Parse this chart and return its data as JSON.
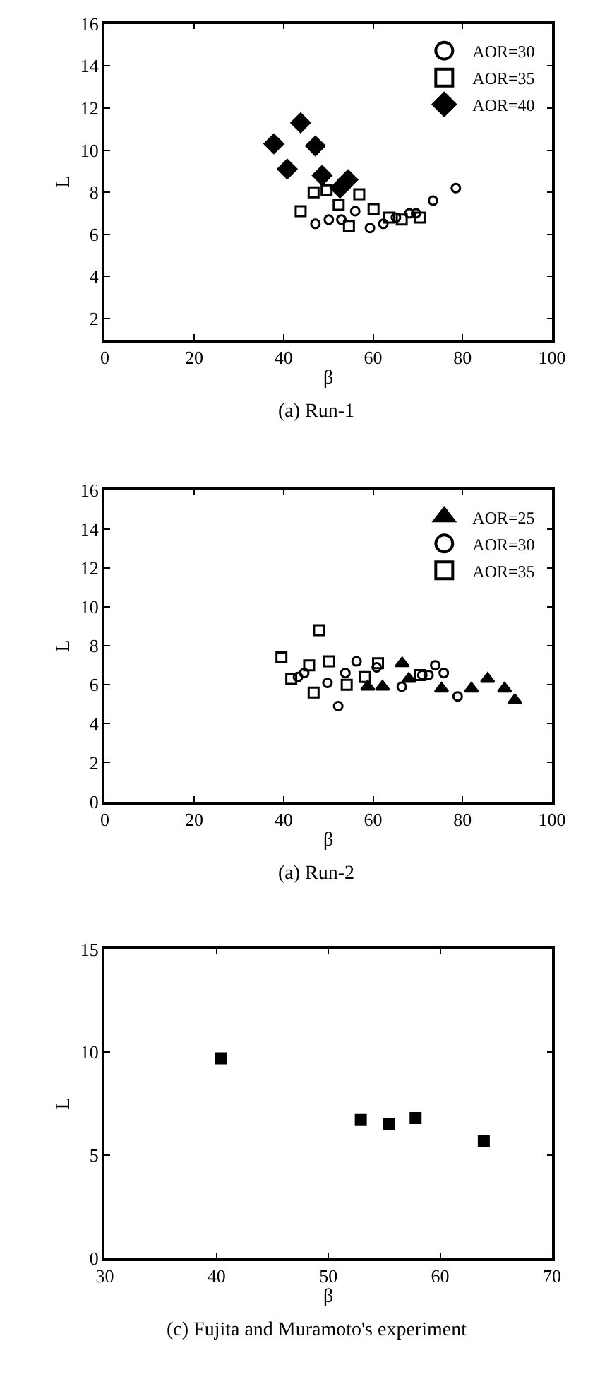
{
  "chart_data": [
    {
      "type": "scatter",
      "xlabel": "β",
      "ylabel": "L",
      "annotations": [
        "(a) Run-1"
      ],
      "xlim": [
        0,
        100
      ],
      "xticks": [
        0,
        20,
        40,
        60,
        80,
        100
      ],
      "ylim": [
        1,
        16
      ],
      "yticks": [
        2,
        4,
        6,
        8,
        10,
        12,
        14,
        16
      ],
      "grid": false,
      "legend": "top right",
      "series": [
        {
          "name": "AOR=30",
          "color": "#000000",
          "marker": "circle",
          "x": [
            47.1,
            50.1,
            52.9,
            56.0,
            59.3,
            62.3,
            65.1,
            68.1,
            69.6,
            73.4,
            78.5
          ],
          "values": [
            6.5,
            6.7,
            6.7,
            7.1,
            6.3,
            6.5,
            6.8,
            7.0,
            7.0,
            7.6,
            8.2
          ]
        },
        {
          "name": "AOR=35",
          "color": "#000000",
          "marker": "square",
          "x": [
            43.8,
            46.7,
            49.6,
            52.3,
            54.6,
            56.9,
            60.1,
            63.6,
            66.4,
            70.4
          ],
          "values": [
            7.1,
            8.0,
            8.1,
            7.4,
            6.4,
            7.9,
            7.2,
            6.8,
            6.7,
            6.8
          ]
        },
        {
          "name": "AOR=40",
          "color": "#000000",
          "marker": "diamond",
          "x": [
            37.8,
            43.8,
            47.1,
            40.8,
            48.6,
            52.6,
            54.4
          ],
          "values": [
            10.3,
            11.3,
            10.2,
            9.1,
            8.8,
            8.2,
            8.6
          ]
        }
      ]
    },
    {
      "type": "scatter",
      "xlabel": "β",
      "ylabel": "L",
      "annotations": [
        "(a) Run-2"
      ],
      "xlim": [
        0,
        100
      ],
      "xticks": [
        0,
        20,
        40,
        60,
        80,
        100
      ],
      "ylim": [
        0,
        16
      ],
      "yticks": [
        0,
        2,
        4,
        6,
        8,
        10,
        12,
        14,
        16
      ],
      "grid": false,
      "legend": "top right",
      "series": [
        {
          "name": "AOR=25",
          "color": "#000000",
          "marker": "triangle",
          "x": [
            58.8,
            62.1,
            66.5,
            68.0,
            75.3,
            82.0,
            85.6,
            89.4,
            91.7
          ],
          "values": [
            5.9,
            5.9,
            7.1,
            6.3,
            5.8,
            5.8,
            6.3,
            5.8,
            5.2
          ]
        },
        {
          "name": "AOR=30",
          "color": "#000000",
          "marker": "circle",
          "x": [
            43.2,
            44.6,
            49.8,
            52.2,
            53.8,
            56.3,
            60.8,
            66.4,
            71.0,
            72.4,
            73.9,
            75.8,
            78.9
          ],
          "values": [
            6.4,
            6.6,
            6.1,
            4.9,
            6.6,
            7.2,
            6.9,
            5.9,
            6.5,
            6.5,
            7.0,
            6.6,
            5.4
          ]
        },
        {
          "name": "AOR=35",
          "color": "#000000",
          "marker": "square",
          "x": [
            39.5,
            41.7,
            45.7,
            46.7,
            47.9,
            50.2,
            54.1,
            58.2,
            61.1,
            70.5
          ],
          "values": [
            7.4,
            6.3,
            7.0,
            5.6,
            8.8,
            7.2,
            6.0,
            6.4,
            7.1,
            6.5
          ]
        }
      ]
    },
    {
      "type": "scatter",
      "xlabel": "β",
      "ylabel": "L",
      "annotations": [
        "(c) Fujita and Muramoto's experiment"
      ],
      "xlim": [
        30,
        70
      ],
      "xticks": [
        30,
        40,
        50,
        60,
        70
      ],
      "ylim": [
        0,
        15
      ],
      "yticks": [
        0,
        5,
        10,
        15
      ],
      "grid": false,
      "legend": false,
      "series": [
        {
          "color": "#000000",
          "marker": "square",
          "x": [
            40.4,
            52.9,
            55.4,
            57.8,
            63.9
          ],
          "values": [
            9.7,
            6.7,
            6.5,
            6.8,
            5.7
          ]
        }
      ]
    }
  ]
}
